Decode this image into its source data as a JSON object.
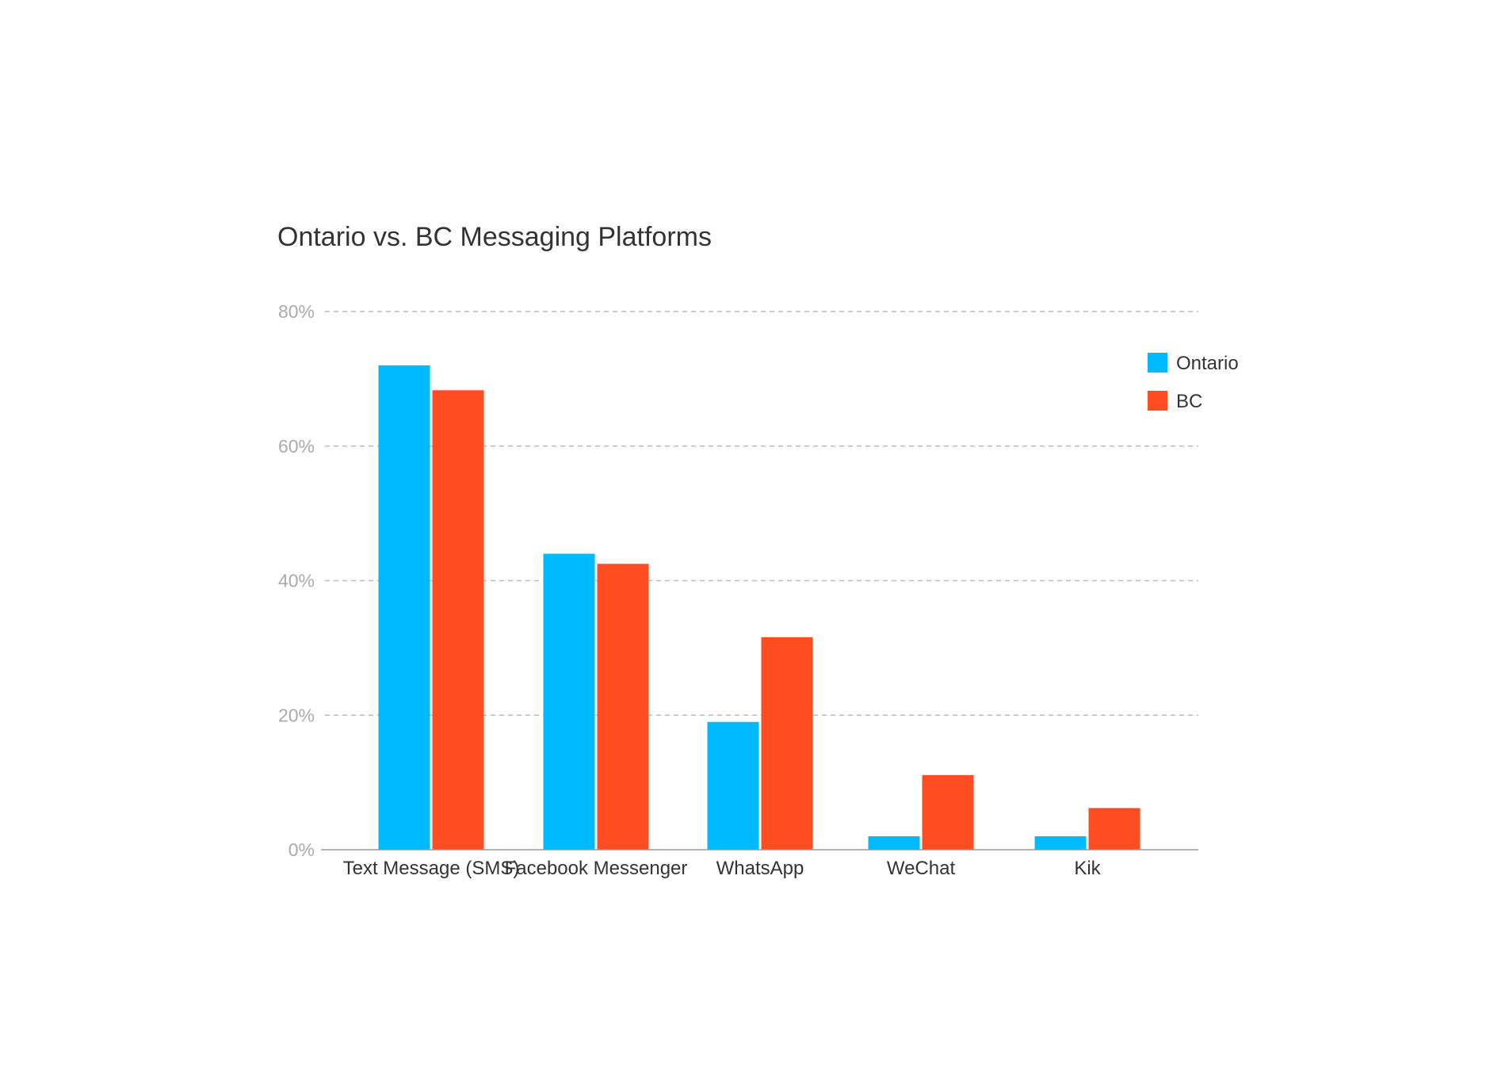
{
  "chart_data": {
    "type": "bar",
    "title": "Ontario vs. BC Messaging Platforms",
    "categories": [
      "Text Message (SMS)",
      "Facebook Messenger",
      "WhatsApp",
      "WeChat",
      "Kik"
    ],
    "series": [
      {
        "name": "Ontario",
        "color": "#00BAFF",
        "values": [
          72,
          44,
          19,
          2,
          2
        ]
      },
      {
        "name": "BC",
        "color": "#FF4D22",
        "values": [
          68.3,
          42.5,
          31.6,
          11.1,
          6.2
        ]
      }
    ],
    "ylim": [
      0,
      80
    ],
    "yticks": [
      0,
      20,
      40,
      60,
      80
    ],
    "ytick_labels": [
      "0%",
      "20%",
      "40%",
      "60%",
      "80%"
    ],
    "grid": true,
    "legend_position": "top-right"
  }
}
